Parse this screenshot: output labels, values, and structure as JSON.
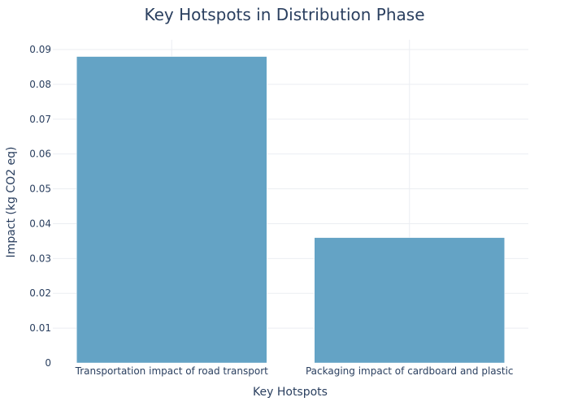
{
  "chart_data": {
    "type": "bar",
    "title": "Key Hotspots in Distribution Phase",
    "xlabel": "Key Hotspots",
    "ylabel": "Impact (kg CO2 eq)",
    "categories": [
      "Transportation impact of road transport",
      "Packaging impact of cardboard and plastic"
    ],
    "values": [
      0.088,
      0.036
    ],
    "ylim": [
      0,
      0.09
    ],
    "yticks": [
      0,
      0.01,
      0.02,
      0.03,
      0.04,
      0.05,
      0.06,
      0.07,
      0.08,
      0.09
    ],
    "ytick_labels": [
      "0",
      "0.01",
      "0.02",
      "0.03",
      "0.04",
      "0.05",
      "0.06",
      "0.07",
      "0.08",
      "0.09"
    ],
    "grid": true,
    "bar_color": "#64a3c5"
  }
}
